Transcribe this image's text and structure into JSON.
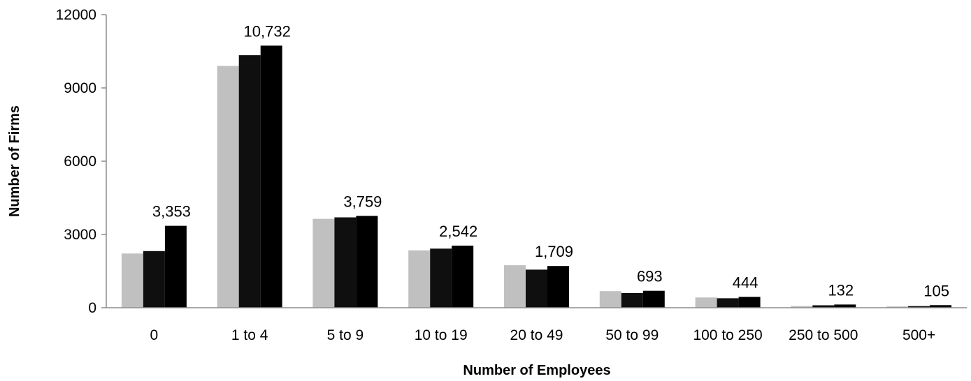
{
  "chart_data": {
    "type": "bar",
    "title": "",
    "xlabel": "Number of Employees",
    "ylabel": "Number of Firms",
    "ylim": [
      0,
      12000
    ],
    "yticks": [
      0,
      3000,
      6000,
      9000,
      12000
    ],
    "ytick_labels": [
      "0",
      "3000",
      "6000",
      "9000",
      "12000"
    ],
    "grid": false,
    "legend": "none",
    "categories": [
      "0",
      "1 to 4",
      "5 to 9",
      "10 to 19",
      "20 to 49",
      "50 to 99",
      "100 to 250",
      "250 to 500",
      "500+"
    ],
    "series": [
      {
        "color": "#c0c0c0",
        "values": [
          2220,
          9900,
          3640,
          2350,
          1740,
          680,
          420,
          70,
          55
        ]
      },
      {
        "color": "#0f0f0f",
        "values": [
          2320,
          10340,
          3700,
          2420,
          1560,
          600,
          390,
          100,
          65
        ]
      },
      {
        "color": "#000000",
        "values": [
          3353,
          10732,
          3759,
          2542,
          1709,
          693,
          444,
          132,
          105
        ]
      }
    ],
    "data_labels": [
      "3,353",
      "10,732",
      "3,759",
      "2,542",
      "1,709",
      "693",
      "444",
      "132",
      "105"
    ]
  }
}
